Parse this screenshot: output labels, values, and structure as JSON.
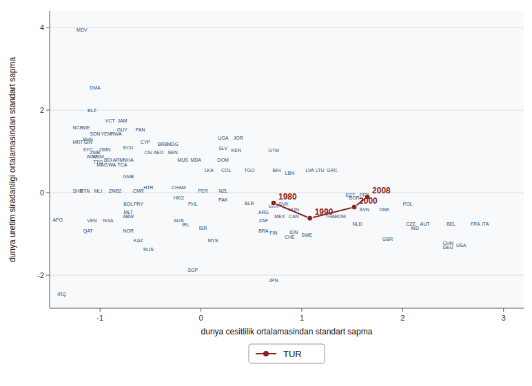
{
  "chart_data": {
    "type": "scatter",
    "title": "",
    "xlabel": "dunya cesitlilik ortalamasindan standart sapma",
    "ylabel": "dunya uretim siradanligi ortalamasindan standart sapma",
    "xlim": [
      -1.5,
      3.2
    ],
    "ylim": [
      -2.8,
      4.4
    ],
    "xticks": [
      -1,
      0,
      1,
      2,
      3
    ],
    "yticks": [
      -2,
      0,
      2,
      4
    ],
    "grid": "y",
    "legend": "bottom",
    "series": [
      {
        "type": "scatter",
        "marker": "text",
        "color": "#1f4e79",
        "labels": [
          "MDV",
          "DMA",
          "BLZ",
          "VCT",
          "JAM",
          "NCE",
          "NIE",
          "SDN",
          "YEM",
          "RWA",
          "GUY",
          "PAN",
          "BHS",
          "MRT",
          "GIN",
          "CYP",
          "BRB",
          "MDG",
          "UGA",
          "JOR",
          "SYC",
          "ZMB",
          "OMN",
          "ECU",
          "CIV",
          "AEO",
          "SEN",
          "SLV",
          "KEN",
          "GTM",
          "AGO",
          "WSM",
          "TTO",
          "BDI",
          "ARM",
          "NHA",
          "MUS",
          "MDA",
          "DOM",
          "LKA",
          "COL",
          "TGO",
          "BIH",
          "LBN",
          "LVA",
          "LTU",
          "GRC",
          "MAG",
          "WA",
          "TCA",
          "GMB",
          "SHR",
          "BTN",
          "MLI",
          "ZMB2",
          "CMR",
          "HTR",
          "CHAM",
          "PER",
          "NZL",
          "EST",
          "PRT",
          "BGR",
          "HKG",
          "PAK",
          "BOL",
          "PRY",
          "PHL",
          "BLR",
          "UKR",
          "SVK",
          "HUN",
          "SVN",
          "DNK",
          "POL",
          "MLT",
          "ABW",
          "ARG",
          "MEX",
          "CAN",
          "THA",
          "ROM",
          "AUS",
          "ZAF",
          "NLD",
          "CZE",
          "AUT",
          "IND",
          "BEL",
          "ITA",
          "FRA",
          "VEN",
          "NGA",
          "IRL",
          "ISR",
          "BRA",
          "IDN",
          "FIN",
          "CHE",
          "SWE",
          "GBR",
          "CHN",
          "USA",
          "DEU",
          "QAT",
          "NOR",
          "KAZ",
          "MYS",
          "RUS",
          "SGP",
          "JPN",
          "IRQ",
          "AFG"
        ],
        "x": [
          -1.18,
          -1.05,
          -1.08,
          -0.9,
          -0.78,
          -1.22,
          -1.14,
          -1.05,
          -0.94,
          -0.84,
          -0.78,
          -0.6,
          -1.12,
          -1.22,
          -1.12,
          -0.55,
          -0.38,
          -0.28,
          0.22,
          0.37,
          -1.12,
          -1.05,
          -0.95,
          -0.72,
          -0.52,
          -0.42,
          -0.28,
          0.22,
          0.35,
          0.72,
          -1.08,
          -1.02,
          -1.02,
          -0.92,
          -0.82,
          -0.72,
          -0.18,
          -0.05,
          0.22,
          0.08,
          0.25,
          0.48,
          0.75,
          0.88,
          1.08,
          1.18,
          1.3,
          -0.98,
          -0.88,
          -0.78,
          -0.72,
          -1.22,
          -1.15,
          -1.02,
          -0.85,
          -0.62,
          -0.52,
          -0.22,
          0.02,
          0.22,
          1.48,
          1.62,
          1.52,
          -0.22,
          0.22,
          -0.72,
          -0.62,
          -0.08,
          0.48,
          0.72,
          0.82,
          0.92,
          1.62,
          1.82,
          2.05,
          -0.72,
          -0.72,
          0.62,
          0.78,
          0.92,
          1.28,
          1.38,
          -0.22,
          0.62,
          1.55,
          2.08,
          2.22,
          2.12,
          2.48,
          2.82,
          2.72,
          -1.08,
          -0.92,
          -0.15,
          0.02,
          0.62,
          0.92,
          0.72,
          0.88,
          1.05,
          1.85,
          2.45,
          2.58,
          2.45,
          -1.12,
          -0.72,
          -0.62,
          0.12,
          -0.52,
          -0.08,
          0.72,
          -1.38,
          -1.42
        ],
        "values": [
          3.95,
          2.55,
          2.0,
          1.75,
          1.75,
          1.58,
          1.58,
          1.42,
          1.42,
          1.42,
          1.52,
          1.52,
          1.3,
          1.22,
          1.22,
          1.22,
          1.18,
          1.18,
          1.32,
          1.32,
          1.05,
          0.98,
          1.05,
          1.1,
          0.98,
          0.98,
          0.98,
          1.08,
          1.02,
          1.02,
          0.88,
          0.88,
          0.75,
          0.8,
          0.8,
          0.8,
          0.8,
          0.8,
          0.8,
          0.55,
          0.55,
          0.55,
          0.55,
          0.48,
          0.55,
          0.55,
          0.55,
          0.68,
          0.68,
          0.68,
          0.4,
          0.05,
          0.05,
          0.05,
          0.05,
          0.05,
          0.12,
          0.12,
          0.05,
          0.05,
          -0.05,
          -0.05,
          -0.12,
          -0.12,
          -0.18,
          -0.28,
          -0.28,
          -0.28,
          -0.25,
          -0.32,
          -0.28,
          -0.4,
          -0.4,
          -0.4,
          -0.28,
          -0.48,
          -0.58,
          -0.48,
          -0.58,
          -0.58,
          -0.58,
          -0.58,
          -0.68,
          -0.68,
          -0.75,
          -0.75,
          -0.75,
          -0.85,
          -0.75,
          -0.75,
          -0.75,
          -0.68,
          -0.68,
          -0.78,
          -0.85,
          -0.92,
          -0.95,
          -0.98,
          -1.08,
          -1.02,
          -1.12,
          -1.22,
          -1.28,
          -1.32,
          -0.92,
          -0.92,
          -1.15,
          -1.15,
          -1.38,
          -1.88,
          -2.12,
          -2.45,
          -0.65
        ]
      },
      {
        "name": "TUR",
        "type": "line",
        "marker": "circle",
        "line_style": "solid",
        "color": "#8b2020",
        "labels": [
          "1980",
          "1990",
          "2000",
          "2008"
        ],
        "x": [
          0.72,
          1.08,
          1.52,
          1.65
        ],
        "values": [
          -0.25,
          -0.62,
          -0.35,
          -0.1
        ]
      }
    ]
  }
}
